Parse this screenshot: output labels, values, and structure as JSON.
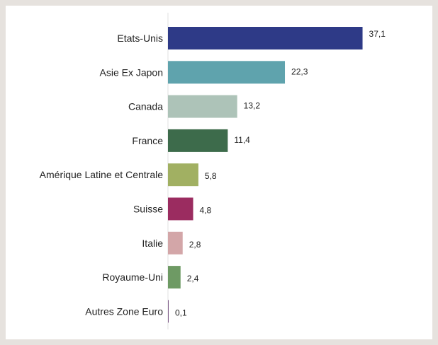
{
  "chart_data": {
    "type": "bar",
    "orientation": "horizontal",
    "categories": [
      "Etats-Unis",
      "Asie Ex Japon",
      "Canada",
      "France",
      "Amérique Latine et Centrale",
      "Suisse",
      "Italie",
      "Royaume-Uni",
      "Autres Zone Euro"
    ],
    "values": [
      37.1,
      22.3,
      13.2,
      11.4,
      5.8,
      4.8,
      2.8,
      2.4,
      0.1
    ],
    "value_labels": [
      "37,1",
      "22,3",
      "13,2",
      "11,4",
      "5,8",
      "4,8",
      "2,8",
      "2,4",
      "0,1"
    ],
    "colors": [
      "#2e3a87",
      "#5fa3ad",
      "#adc3b8",
      "#3d6b4b",
      "#a1b062",
      "#9b2c60",
      "#d3a6a8",
      "#6e9a64",
      "#7d5b88"
    ],
    "xlim": [
      0,
      40
    ],
    "grid": false,
    "legend": "none"
  }
}
